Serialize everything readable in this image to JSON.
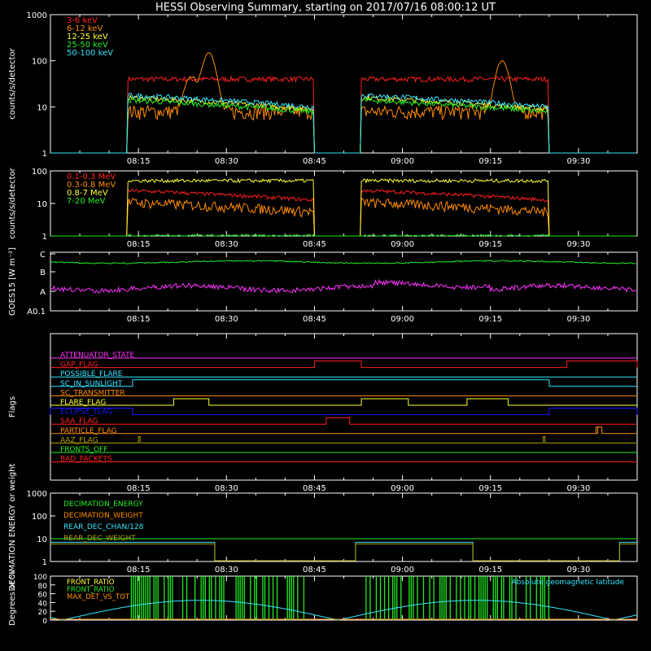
{
  "title": "HESSI Observing Summary, starting on 2017/07/16 08:00:12 UT",
  "colors": {
    "background": "#000000",
    "axes": "#ffffff",
    "red": "#ff2020",
    "orange": "#ff8c00",
    "yellow": "#ffff33",
    "green": "#22ee22",
    "cyan": "#33e6ff",
    "magenta": "#ff33ff",
    "blue": "#1a1aff",
    "olive": "#b3a000"
  },
  "chart_data": [
    {
      "name": "countrate-low",
      "type": "line",
      "ylabel": "counts/s/detector",
      "yscale": "log",
      "ylim": [
        1,
        1000
      ],
      "yticks": [
        "1",
        "10",
        "100",
        "1000"
      ],
      "xticks": [
        "08:15",
        "08:30",
        "08:45",
        "09:00",
        "09:15",
        "09:30"
      ],
      "intervals": [
        [
          "08:13",
          "08:45"
        ],
        [
          "08:53",
          "09:25"
        ]
      ],
      "series": [
        {
          "name": "3-6 keV",
          "color": "red",
          "level": 40,
          "peaks": []
        },
        {
          "name": "6-12 keV",
          "color": "orange",
          "level": 8,
          "peaks": [
            [
              "08:24",
              45
            ],
            [
              "08:27",
              150
            ],
            [
              "09:17",
              100
            ]
          ]
        },
        {
          "name": "12-25 keV",
          "color": "yellow",
          "level": 16,
          "peaks": []
        },
        {
          "name": "25-50 keV",
          "color": "green",
          "level": 14,
          "peaks": []
        },
        {
          "name": "50-100 keV",
          "color": "cyan",
          "level": 18,
          "peaks": []
        }
      ]
    },
    {
      "name": "countrate-high",
      "type": "line",
      "ylabel": "counts/s/detector",
      "yscale": "log",
      "ylim": [
        1,
        100
      ],
      "yticks": [
        "1",
        "10",
        "100"
      ],
      "xticks": [
        "08:15",
        "08:30",
        "08:45",
        "09:00",
        "09:15",
        "09:30"
      ],
      "intervals": [
        [
          "08:13",
          "08:45"
        ],
        [
          "08:53",
          "09:25"
        ]
      ],
      "series": [
        {
          "name": "0.1-0.3 MeV",
          "color": "red",
          "level": 25
        },
        {
          "name": "0.3-0.8 MeV",
          "color": "orange",
          "level": 11
        },
        {
          "name": "0.8-7 MeV",
          "color": "yellow",
          "level": 50
        },
        {
          "name": "7-20 MeV",
          "color": "green",
          "level": 1
        }
      ]
    },
    {
      "name": "goes",
      "type": "line",
      "ylabel": "GOES15 [W m⁻²]",
      "yticks": [
        "A0.1",
        "A",
        "B",
        "C"
      ],
      "xticks": [
        "08:15",
        "08:30",
        "08:45",
        "09:00",
        "09:15",
        "09:30"
      ],
      "series": [
        {
          "color": "green",
          "level_class": "B",
          "level": 0.75
        },
        {
          "color": "magenta",
          "level_class": "A",
          "level": 0.42
        }
      ]
    },
    {
      "name": "flags",
      "type": "line",
      "ylabel": "Flags",
      "xticks": [
        "08:15",
        "08:30",
        "08:45",
        "09:00",
        "09:15",
        "09:30"
      ],
      "flags": [
        {
          "label": "ATTENUATOR_STATE",
          "color": "magenta",
          "on": []
        },
        {
          "label": "GAP_FLAG",
          "color": "red",
          "on": [
            [
              "08:45",
              "08:53"
            ],
            [
              "09:28",
              "09:40"
            ]
          ]
        },
        {
          "label": "POSSIBLE_FLARE",
          "color": "cyan",
          "on": []
        },
        {
          "label": "SC_IN_SUNLIGHT",
          "color": "cyan",
          "on": [
            [
              "08:14",
              "09:25"
            ]
          ]
        },
        {
          "label": "SC_TRANSMITTER",
          "color": "orange",
          "on": []
        },
        {
          "label": "FLARE_FLAG",
          "color": "yellow",
          "on": [
            [
              "08:21",
              "08:27"
            ],
            [
              "08:53",
              "09:01"
            ],
            [
              "09:11",
              "09:18"
            ]
          ]
        },
        {
          "label": "ECLIPSE_FLAG",
          "color": "blue",
          "on": [
            [
              "08:00",
              "08:14"
            ],
            [
              "09:25",
              "09:40"
            ]
          ]
        },
        {
          "label": "SAA_FLAG",
          "color": "red",
          "on": [
            [
              "08:47",
              "08:51"
            ]
          ]
        },
        {
          "label": "PARTICLE_FLAG",
          "color": "orange",
          "on": [
            [
              "09:33",
              "09:33"
            ],
            [
              "09:33",
              "09:34"
            ]
          ]
        },
        {
          "label": "AAZ_FLAG",
          "color": "olive",
          "on": [
            [
              "08:15",
              "08:15"
            ],
            [
              "09:24",
              "09:24"
            ]
          ]
        },
        {
          "label": "FRONTS_OFF",
          "color": "green",
          "on": []
        },
        {
          "label": "BAD_PACKETS",
          "color": "red",
          "on": []
        }
      ]
    },
    {
      "name": "decimation",
      "type": "line",
      "ylabel": "DECIMATION ENERGY or weight",
      "yscale": "log",
      "ylim": [
        1,
        1000
      ],
      "yticks": [
        "1",
        "10",
        "100",
        "1000"
      ],
      "xticks": [
        "08:15",
        "08:30",
        "08:45",
        "09:00",
        "09:15",
        "09:30"
      ],
      "series": [
        {
          "name": "DECIMATION_ENERGY",
          "color": "green"
        },
        {
          "name": "DECIMATION_WEIGHT",
          "color": "orange"
        },
        {
          "name": "REAR_DEC_CHAN/128",
          "color": "cyan"
        },
        {
          "name": "REAR_DEC_WEIGHT",
          "color": "olive"
        }
      ]
    },
    {
      "name": "ratios",
      "type": "line",
      "ylabel": "Degrees or %",
      "ylim": [
        0,
        100
      ],
      "yticks": [
        "0",
        "20",
        "40",
        "60",
        "80",
        "100"
      ],
      "annotation": "Absolute geomagnetic latitude",
      "series": [
        {
          "name": "FRONT_RATIO",
          "color": "yellow"
        },
        {
          "name": "FRONT_RATIO",
          "color": "green"
        },
        {
          "name": "MAX_DET_VS_TOT",
          "color": "orange"
        }
      ]
    }
  ]
}
